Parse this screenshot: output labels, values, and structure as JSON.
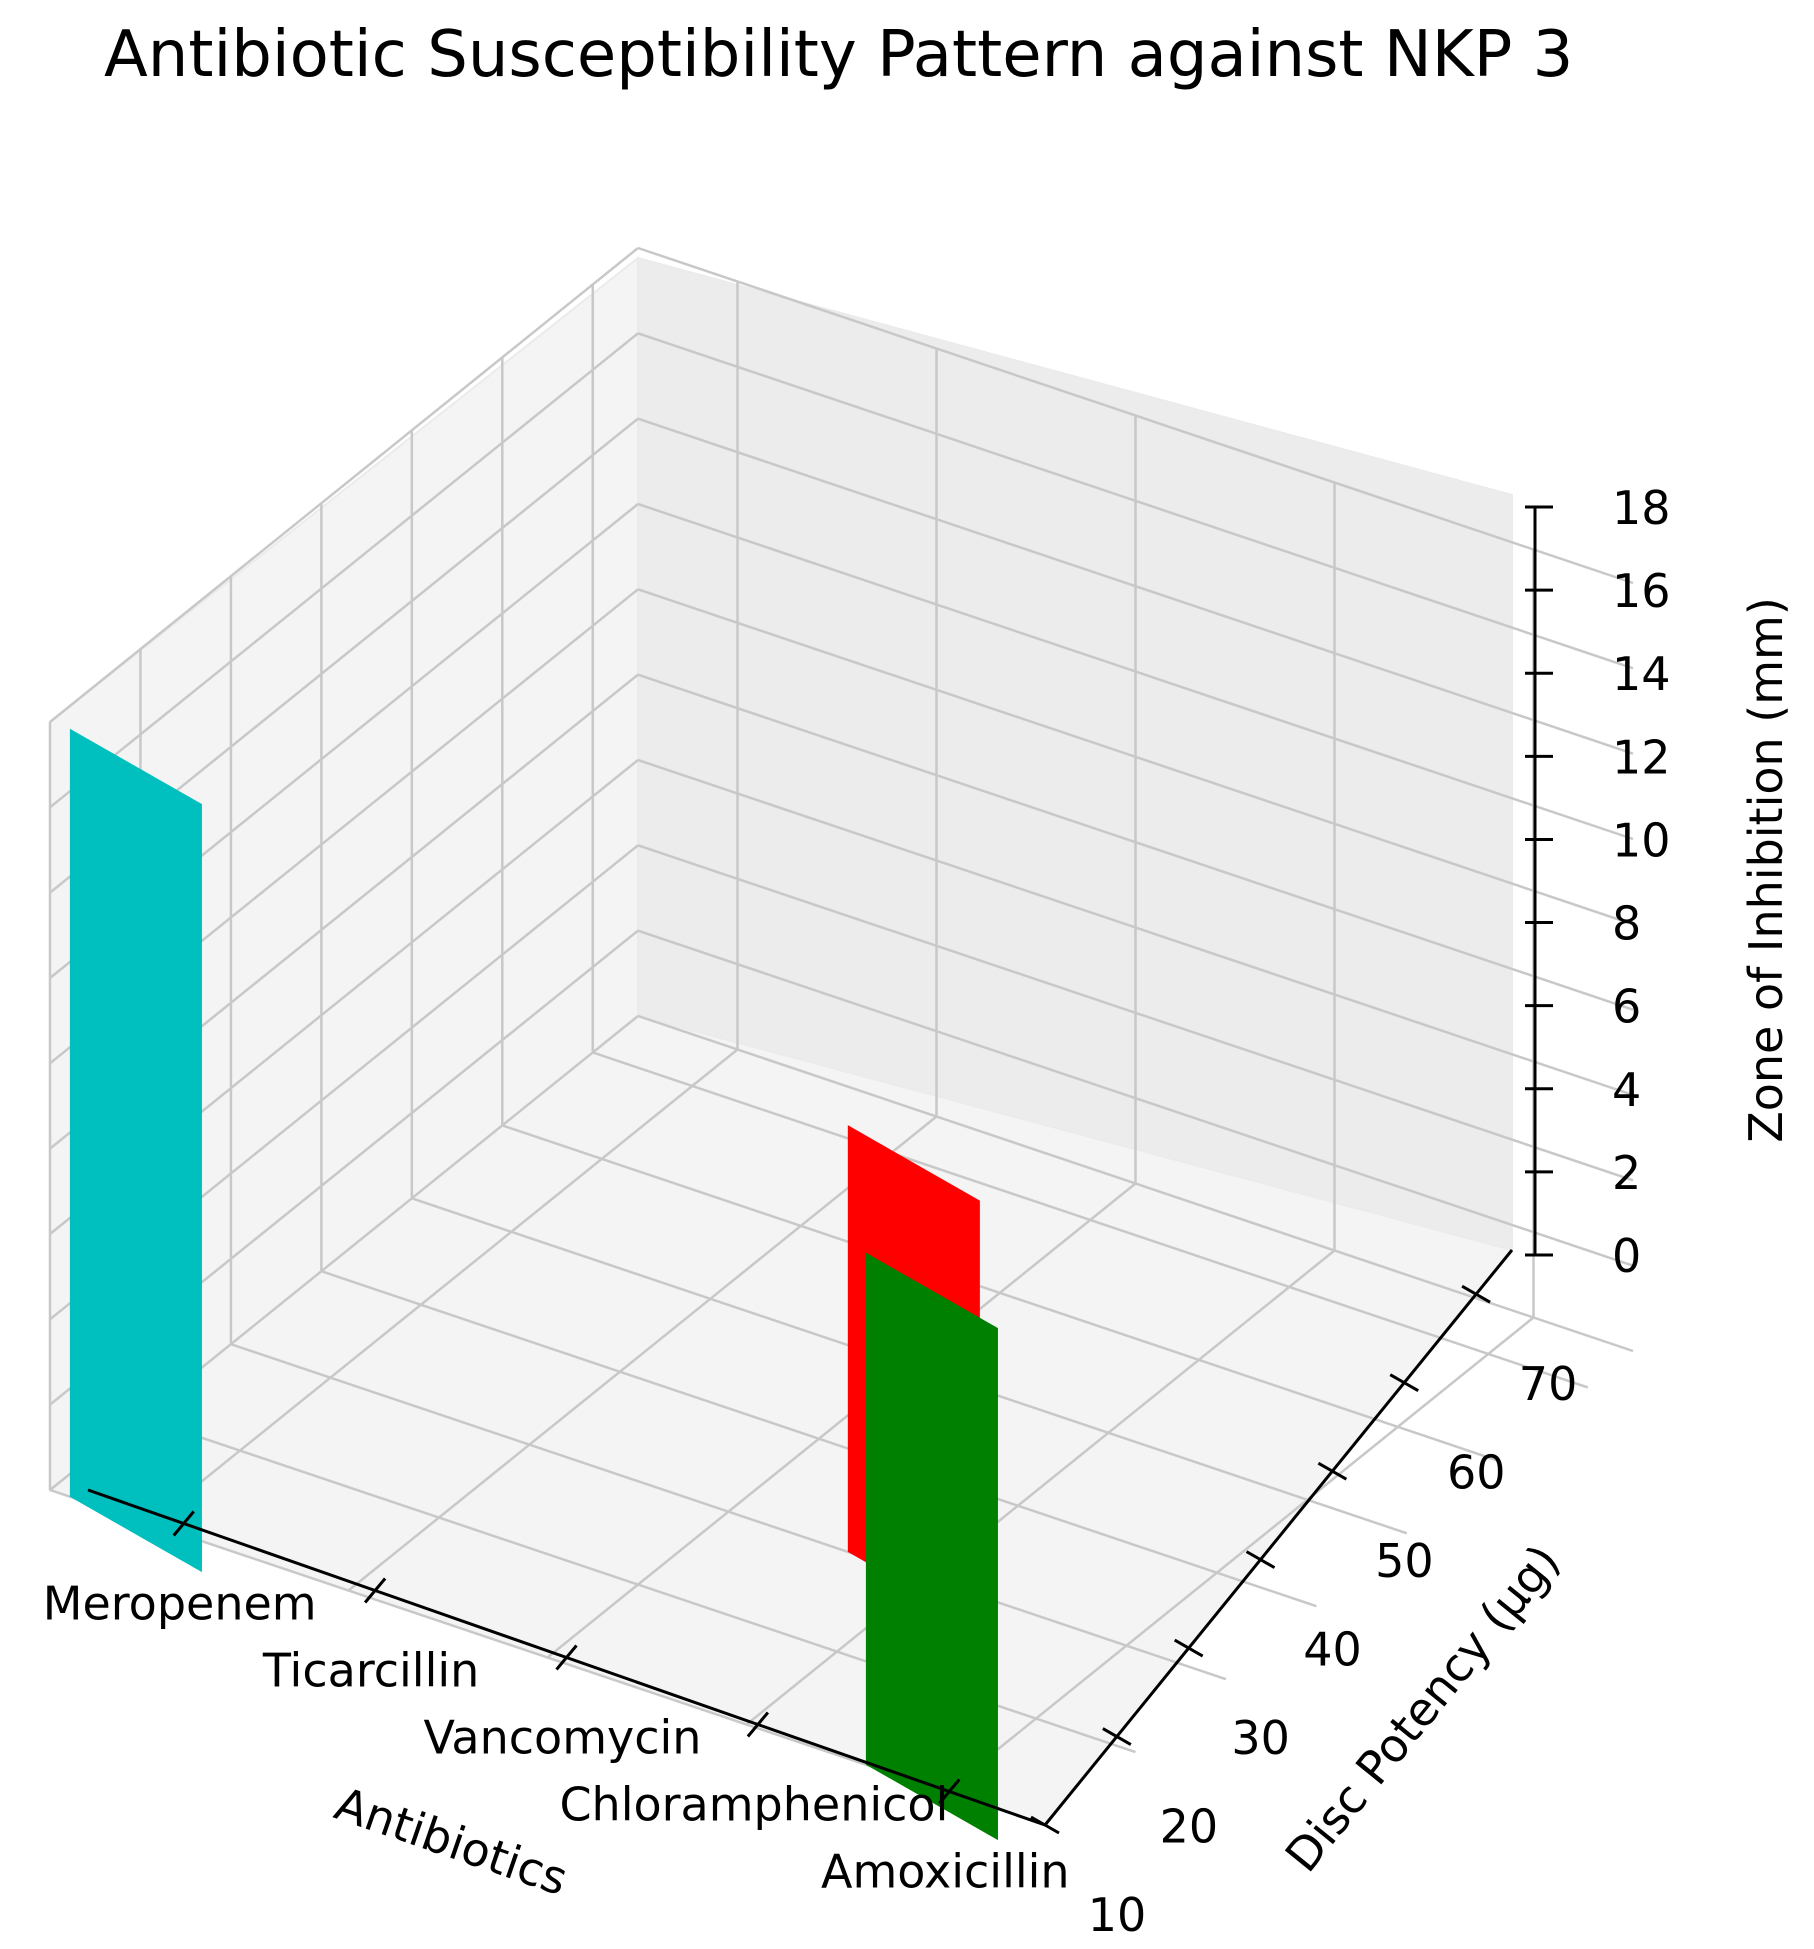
{
  "chart_data": {
    "type": "bar",
    "projection": "3d",
    "title": "Antibiotic Susceptibility Pattern against NKP 3",
    "xlabel": "Antibiotics",
    "ylabel": "Disc Potency (µg)",
    "zlabel": "Zone of Inhibition (mm)",
    "categories": [
      "Meropenem",
      "Ticarcillin",
      "Vancomycin",
      "Chloramphenicol",
      "Amoxicillin"
    ],
    "y_ticks": [
      10,
      20,
      30,
      40,
      50,
      60,
      70
    ],
    "z_ticks": [
      0,
      2,
      4,
      6,
      8,
      10,
      12,
      14,
      16,
      18
    ],
    "zlim": [
      0,
      18
    ],
    "grid": true,
    "bars": [
      {
        "category": "Meropenem",
        "potency": 10,
        "zone": 18,
        "color": "#00bfbf"
      },
      {
        "category": "Ticarcillin",
        "potency": 75,
        "zone": 0,
        "color": "#0000ff"
      },
      {
        "category": "Vancomycin",
        "potency": 30,
        "zone": 0,
        "color": "#bf00bf"
      },
      {
        "category": "Chloramphenicol",
        "potency": 30,
        "zone": 10,
        "color": "#ff0000"
      },
      {
        "category": "Amoxicillin",
        "potency": 10,
        "zone": 12,
        "color": "#008000"
      }
    ]
  }
}
